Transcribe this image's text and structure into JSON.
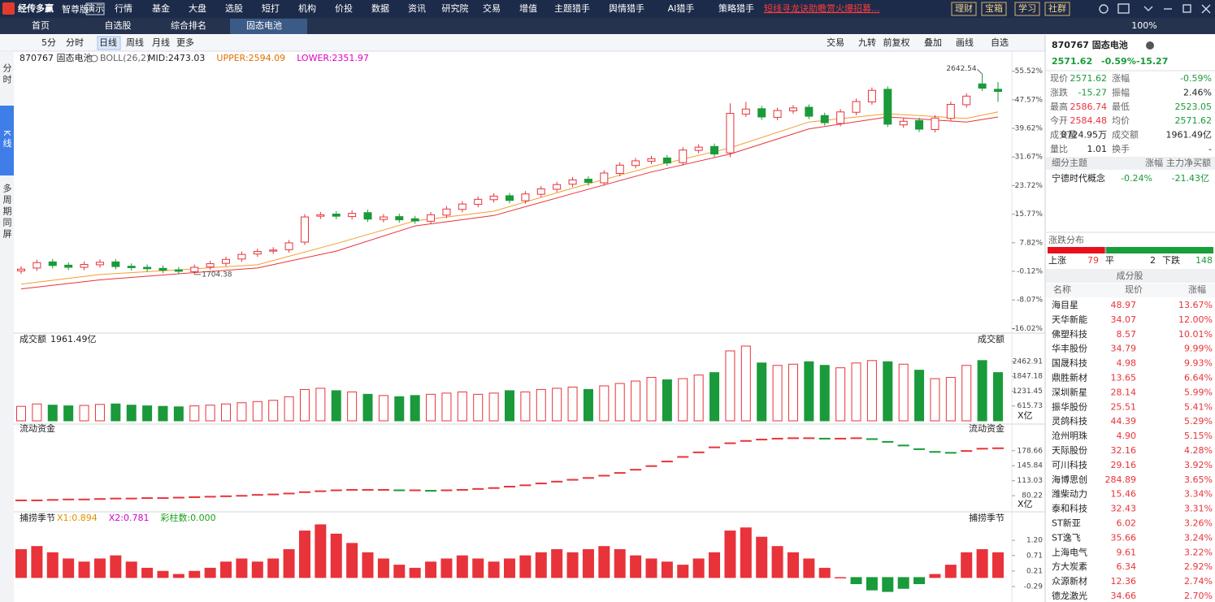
{
  "app": {
    "logo": "经传多赢",
    "edition": "智尊版",
    "demo": "演示",
    "menu": [
      "行情",
      "基金",
      "大盘",
      "选股",
      "短打",
      "机构",
      "价投",
      "数据",
      "资讯",
      "研究院",
      "交易",
      "增值",
      "主题猎手",
      "舆情猎手",
      "AI猎手",
      "策略猎手"
    ],
    "promo": "短线寻龙诀助瞻赏火爆招募...",
    "right_buttons": [
      "理财",
      "宝箱",
      "学习",
      "社群"
    ]
  },
  "tabs": [
    "首页",
    "自选股",
    "综合排名",
    "固态电池"
  ],
  "zoom": "100%",
  "sidebar": [
    "分时",
    "K线",
    "多周期同屏"
  ],
  "toolbar": {
    "left": [
      "5分",
      "分时",
      "日线",
      "周线",
      "月线",
      "更多"
    ],
    "right": [
      "交易",
      "九转",
      "前复权",
      "叠加",
      "画线",
      "自选"
    ]
  },
  "chart_data": [
    {
      "type": "candlestick",
      "title": "870767 固态电池",
      "indicator": "BOLL(26,2)",
      "legend": [
        {
          "label": "MID:2473.03",
          "color": "#222222"
        },
        {
          "label": "UPPER:2594.09",
          "color": "#e07000"
        },
        {
          "label": "LOWER:2351.97",
          "color": "#e000c0"
        }
      ],
      "open": [
        0.0,
        0.8,
        2.5,
        1.6,
        1.0,
        1.7,
        2.5,
        1.3,
        1.0,
        0.7,
        0.3,
        -0.2,
        1.1,
        2.1,
        3.3,
        4.7,
        5.5,
        5.9,
        8.0,
        15.2,
        15.8,
        15.1,
        16.2,
        14.3,
        15.1,
        14.5,
        13.8,
        15.5,
        17.1,
        18.5,
        19.8,
        20.9,
        19.5,
        21.3,
        22.7,
        24.1,
        25.5,
        24.5,
        27.1,
        29.3,
        30.5,
        31.4,
        30.1,
        33.5,
        34.6,
        32.8,
        43.6,
        45.1,
        42.7,
        44.5,
        45.5,
        43.2,
        41.0,
        44.1,
        47.0,
        50.5,
        40.6,
        41.8,
        39.3,
        42.4,
        46.2,
        52.0,
        50.5
      ],
      "high": [
        1.3,
        3.1,
        3.3,
        2.4,
        2.6,
        3.2,
        3.3,
        2.1,
        1.8,
        1.5,
        1.1,
        1.8,
        2.8,
        4.0,
        5.4,
        6.2,
        6.6,
        8.6,
        15.8,
        16.4,
        16.6,
        16.8,
        17.0,
        15.8,
        15.9,
        15.3,
        16.4,
        18.0,
        19.4,
        20.7,
        21.6,
        21.7,
        22.2,
        23.6,
        24.8,
        26.1,
        26.3,
        28.0,
        30.2,
        31.4,
        32.0,
        32.2,
        34.4,
        35.2,
        35.4,
        46.6,
        47.0,
        45.9,
        45.4,
        46.1,
        46.3,
        44.0,
        45.0,
        47.9,
        51.0,
        51.3,
        42.4,
        42.6,
        43.3,
        47.1,
        49.4,
        54.7,
        52.5
      ],
      "low": [
        -0.8,
        0.0,
        0.7,
        0.2,
        0.2,
        0.9,
        0.4,
        0.1,
        -0.2,
        -0.6,
        -0.9,
        -1.0,
        0.3,
        1.3,
        2.5,
        3.9,
        4.7,
        5.1,
        7.2,
        14.4,
        14.4,
        14.3,
        13.6,
        13.5,
        13.4,
        13.1,
        13.0,
        14.7,
        16.3,
        17.7,
        19.0,
        18.8,
        18.7,
        20.5,
        21.9,
        23.3,
        23.7,
        23.7,
        26.3,
        28.5,
        29.7,
        29.2,
        29.3,
        32.7,
        31.7,
        31.6,
        42.8,
        42.0,
        41.9,
        43.7,
        42.2,
        40.4,
        40.2,
        43.3,
        46.2,
        40.0,
        39.8,
        38.6,
        38.5,
        41.6,
        45.4,
        50.0,
        47.0
      ],
      "close": [
        0.5,
        2.3,
        1.5,
        1.0,
        1.8,
        2.4,
        1.2,
        0.9,
        0.6,
        0.2,
        -0.1,
        1.0,
        2.0,
        3.2,
        4.6,
        5.4,
        5.8,
        7.8,
        15.0,
        15.6,
        15.2,
        16.0,
        14.4,
        15.0,
        14.2,
        13.9,
        15.6,
        17.2,
        18.6,
        19.9,
        20.8,
        19.6,
        21.4,
        22.8,
        24.0,
        25.3,
        24.6,
        27.2,
        29.4,
        30.6,
        31.2,
        30.0,
        33.6,
        34.4,
        32.5,
        43.8,
        45.0,
        42.8,
        44.6,
        45.3,
        43.0,
        41.2,
        44.2,
        47.1,
        50.2,
        40.8,
        41.6,
        39.4,
        42.5,
        46.3,
        48.6,
        50.8,
        49.9
      ],
      "up_color": "#e8333a",
      "down_color": "#1a9a3a",
      "lines": [
        {
          "color": "#f0a030",
          "x": [
            0,
            5,
            10,
            15,
            20,
            25,
            30,
            35,
            40,
            45,
            50,
            55,
            60,
            62
          ],
          "values": [
            -3.7,
            -1.0,
            0.3,
            1.7,
            7.6,
            13.9,
            16.6,
            23.0,
            29.0,
            34.2,
            41.4,
            43.7,
            42.4,
            44.2
          ]
        },
        {
          "color": "#e8333a",
          "x": [
            0,
            5,
            10,
            15,
            20,
            25,
            30,
            35,
            40,
            45,
            50,
            55,
            60,
            62
          ],
          "values": [
            -5.0,
            -2.5,
            -0.8,
            0.8,
            5.5,
            12.5,
            15.4,
            21.5,
            27.5,
            32.5,
            39.5,
            42.8,
            41.4,
            42.8
          ]
        }
      ],
      "high_label": "2642.54",
      "low_label": "1704.38",
      "ylim": [
        -16.16,
        56.12
      ],
      "yticks": [
        {
          "value": -16.02,
          "label": "-16.02%"
        },
        {
          "value": -8.07,
          "label": "-8.07%"
        },
        {
          "value": -0.12,
          "label": "-0.12%"
        },
        {
          "value": 7.82,
          "label": "7.82%"
        },
        {
          "value": 15.77,
          "label": "15.77%"
        },
        {
          "value": 23.72,
          "label": "23.72%"
        },
        {
          "value": 31.67,
          "label": "31.67%"
        },
        {
          "value": 39.62,
          "label": "39.62%"
        },
        {
          "value": 47.57,
          "label": "47.57%"
        },
        {
          "value": 55.52,
          "label": "55.52%"
        }
      ]
    },
    {
      "type": "bar",
      "title": "成交额",
      "subtitle": "1961.49亿",
      "unit": "X亿",
      "values": [
        600,
        700,
        650,
        620,
        640,
        680,
        700,
        650,
        620,
        600,
        580,
        620,
        650,
        700,
        750,
        800,
        850,
        1000,
        1300,
        1350,
        1250,
        1200,
        1100,
        1050,
        1000,
        1050,
        1100,
        1150,
        1200,
        1100,
        1150,
        1250,
        1200,
        1300,
        1350,
        1400,
        1300,
        1450,
        1550,
        1650,
        1800,
        1700,
        1750,
        1900,
        2000,
        2900,
        3100,
        2400,
        2300,
        2350,
        2450,
        2300,
        2200,
        2400,
        2500,
        2450,
        2350,
        2100,
        1750,
        1800,
        2300,
        2500,
        2000
      ],
      "ylim": [
        0,
        3100
      ],
      "yticks": [
        615.73,
        1231.45,
        1847.18,
        2462.91
      ]
    },
    {
      "type": "line",
      "title": "流动资金",
      "unit": "X亿",
      "values": [
        70,
        70,
        71,
        72,
        72,
        73,
        74,
        74,
        75,
        75,
        76,
        77,
        78,
        79,
        80,
        82,
        83,
        85,
        88,
        90,
        92,
        93,
        93,
        93,
        92,
        92,
        91,
        92,
        93,
        95,
        97,
        100,
        103,
        107,
        111,
        115,
        119,
        124,
        130,
        137,
        145,
        155,
        165,
        175,
        186,
        195,
        200,
        203,
        205,
        206,
        206,
        205,
        205,
        206,
        204,
        198,
        190,
        182,
        176,
        174,
        178,
        183,
        184
      ],
      "ylim": [
        48.5,
        212
      ],
      "yticks": [
        80.22,
        113.03,
        145.84,
        178.66
      ]
    },
    {
      "type": "bar",
      "title": "捕捞季节",
      "legend": [
        {
          "label": "X1:0.894",
          "color": "#e09000"
        },
        {
          "label": "X2:0.781",
          "color": "#d000d0"
        },
        {
          "label": "彩柱数:0.000",
          "color": "#18a018"
        }
      ],
      "values": [
        0.9,
        1.0,
        0.8,
        0.6,
        0.5,
        0.6,
        0.7,
        0.5,
        0.3,
        0.2,
        0.1,
        0.2,
        0.3,
        0.5,
        0.6,
        0.5,
        0.6,
        0.9,
        1.5,
        1.7,
        1.4,
        1.1,
        0.8,
        0.6,
        0.4,
        0.3,
        0.5,
        0.6,
        0.7,
        0.6,
        0.5,
        0.6,
        0.7,
        0.8,
        0.9,
        0.8,
        0.9,
        1.0,
        0.9,
        0.7,
        0.6,
        0.5,
        0.4,
        0.6,
        0.8,
        1.5,
        1.6,
        1.3,
        1.0,
        0.8,
        0.6,
        0.3,
        0.0,
        -0.2,
        -0.4,
        -0.45,
        -0.35,
        -0.2,
        0.1,
        0.4,
        0.8,
        0.9,
        0.8
      ],
      "ylim": [
        -0.71,
        1.96
      ],
      "yticks": [
        -0.29,
        0.21,
        0.71,
        {
          "value": 1.2,
          "label": "1.20"
        }
      ]
    }
  ],
  "quote": {
    "name": "870767 固态电池",
    "price": "2571.62",
    "change_pct": "-0.59%",
    "change": "-15.27",
    "rows": [
      [
        "现价",
        "2571.62",
        "涨幅",
        "-0.59%"
      ],
      [
        "涨跌",
        "-15.27",
        "振幅",
        "2.46%"
      ],
      [
        "最高",
        "2586.74",
        "最低",
        "2523.05"
      ],
      [
        "今开",
        "2584.48",
        "均价",
        "2571.62"
      ],
      [
        "成交量",
        "8724.95万",
        "成交额",
        "1961.49亿"
      ],
      [
        "量比",
        "1.01",
        "换手",
        "-"
      ]
    ],
    "value_colors": [
      [
        "#1a9a3a",
        "#1a9a3a"
      ],
      [
        "#1a9a3a",
        "#222222"
      ],
      [
        "#e8333a",
        "#1a9a3a"
      ],
      [
        "#e8333a",
        "#1a9a3a"
      ],
      [
        "#222222",
        "#222222"
      ],
      [
        "#222222",
        "#222222"
      ]
    ]
  },
  "themes": {
    "header": [
      "细分主题",
      "涨幅",
      "主力净买额"
    ],
    "rows": [
      [
        "宁德时代概念",
        "-0.24%",
        "-21.43亿"
      ]
    ]
  },
  "breadth": {
    "title": "涨跌分布",
    "up_label": "上涨",
    "up": 79,
    "flat_label": "平",
    "flat": 2,
    "down_label": "下跌",
    "down": 148
  },
  "stocks": {
    "title": "成分股",
    "header": [
      "名称",
      "现价",
      "涨幅"
    ],
    "rows": [
      [
        "海目星",
        "48.97",
        "13.67%"
      ],
      [
        "天华新能",
        "34.07",
        "12.00%"
      ],
      [
        "佛塑科技",
        "8.57",
        "10.01%"
      ],
      [
        "华丰股份",
        "34.79",
        "9.99%"
      ],
      [
        "国晟科技",
        "4.98",
        "9.93%"
      ],
      [
        "鼎胜新材",
        "13.65",
        "6.64%"
      ],
      [
        "深圳新星",
        "28.14",
        "5.99%"
      ],
      [
        "振华股份",
        "25.51",
        "5.41%"
      ],
      [
        "灵鸽科技",
        "44.39",
        "5.29%"
      ],
      [
        "沧州明珠",
        "4.90",
        "5.15%"
      ],
      [
        "天际股份",
        "32.16",
        "4.28%"
      ],
      [
        "可川科技",
        "29.16",
        "3.92%"
      ],
      [
        "海博思创",
        "284.89",
        "3.65%"
      ],
      [
        "潍柴动力",
        "15.46",
        "3.34%"
      ],
      [
        "泰和科技",
        "32.43",
        "3.31%"
      ],
      [
        "ST新亚",
        "6.02",
        "3.26%"
      ],
      [
        "ST逸飞",
        "35.66",
        "3.24%"
      ],
      [
        "上海电气",
        "9.61",
        "3.22%"
      ],
      [
        "方大炭素",
        "6.34",
        "2.92%"
      ],
      [
        "众源新材",
        "12.36",
        "2.74%"
      ],
      [
        "德龙激光",
        "34.66",
        "2.70%"
      ]
    ]
  }
}
